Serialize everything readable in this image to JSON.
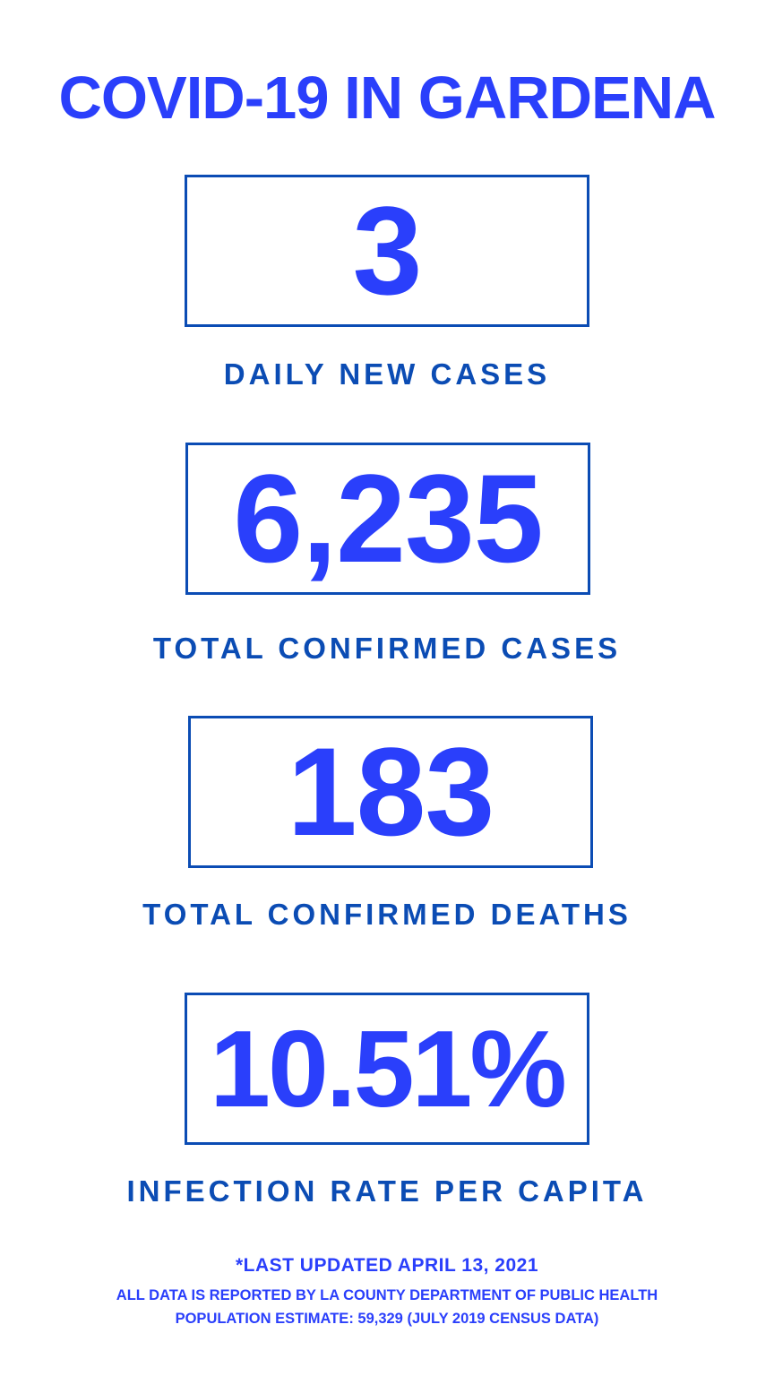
{
  "title": "COVID-19 IN GARDENA",
  "stats": [
    {
      "value": "3",
      "label": "DAILY NEW CASES"
    },
    {
      "value": "6,235",
      "label": "TOTAL CONFIRMED CASES"
    },
    {
      "value": "183",
      "label": "TOTAL CONFIRMED DEATHS"
    },
    {
      "value": "10.51%",
      "label": "INFECTION RATE PER CAPITA"
    }
  ],
  "footer": {
    "updated": "*LAST UPDATED APRIL 13, 2021",
    "source": "ALL DATA IS REPORTED BY LA COUNTY DEPARTMENT OF PUBLIC HEALTH",
    "population": "POPULATION ESTIMATE: 59,329 (JULY 2019 CENSUS DATA)"
  },
  "colors": {
    "number": "#2a3ffb",
    "accent": "#0b4cb4",
    "background": "#ffffff"
  }
}
